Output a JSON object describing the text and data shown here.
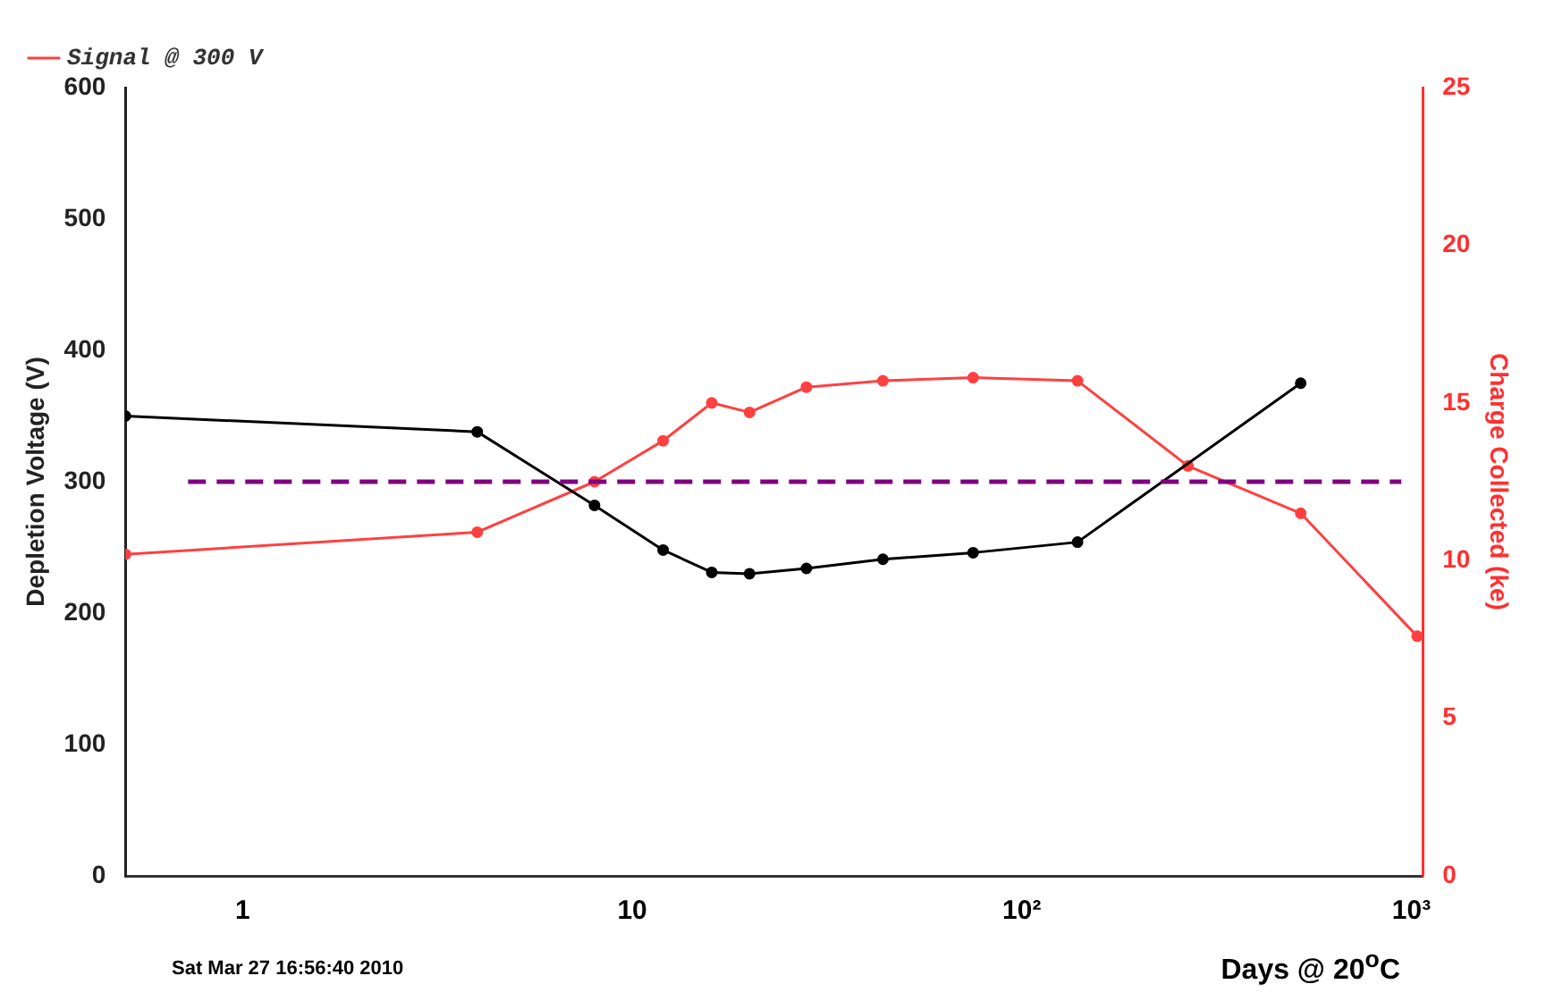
{
  "chart_data": {
    "type": "line",
    "series": [
      {
        "color": "#000000",
        "x": [
          0.5,
          4,
          8,
          12,
          16,
          20,
          28,
          44,
          75,
          139,
          520
        ],
        "values": [
          350,
          338,
          282,
          248,
          231,
          230,
          234,
          241,
          246,
          254,
          375
        ]
      },
      {
        "name": "Signal @ 300 V",
        "color": "#ff4040",
        "axis": "y2",
        "x": [
          0.5,
          4,
          8,
          12,
          16,
          20,
          28,
          44,
          75,
          139,
          267,
          520,
          1035
        ],
        "values": [
          10.2,
          10.9,
          12.5,
          13.8,
          15.0,
          14.7,
          15.5,
          15.7,
          15.8,
          15.7,
          13.0,
          11.5,
          7.6
        ]
      }
    ],
    "log": "x",
    "xlim": [
      0.5,
      1070
    ],
    "xticks": [
      1,
      10,
      {
        "value": 100,
        "label": "10²"
      },
      {
        "value": 1000,
        "label": "10³"
      }
    ],
    "ylim": [
      0,
      600
    ],
    "yticks": [
      0,
      100,
      200,
      300,
      400,
      500,
      600
    ],
    "y2lim": [
      0,
      25
    ],
    "y2ticks": [
      0,
      5,
      10,
      15,
      20,
      25
    ],
    "ylabel": "Depletion Voltage (V)",
    "y2label": "Charge Collected (ke)",
    "xlabel": "Days @ 20$^{o}$C",
    "ref_lines": [
      {
        "axis": "y",
        "value": 300,
        "color": "#800080",
        "line_style": "dashed"
      }
    ],
    "annotations": [
      "Sat Mar 27 16:56:40 2010"
    ],
    "legend": "top left",
    "marker": "circle",
    "line_style": "solid",
    "grid": false
  }
}
